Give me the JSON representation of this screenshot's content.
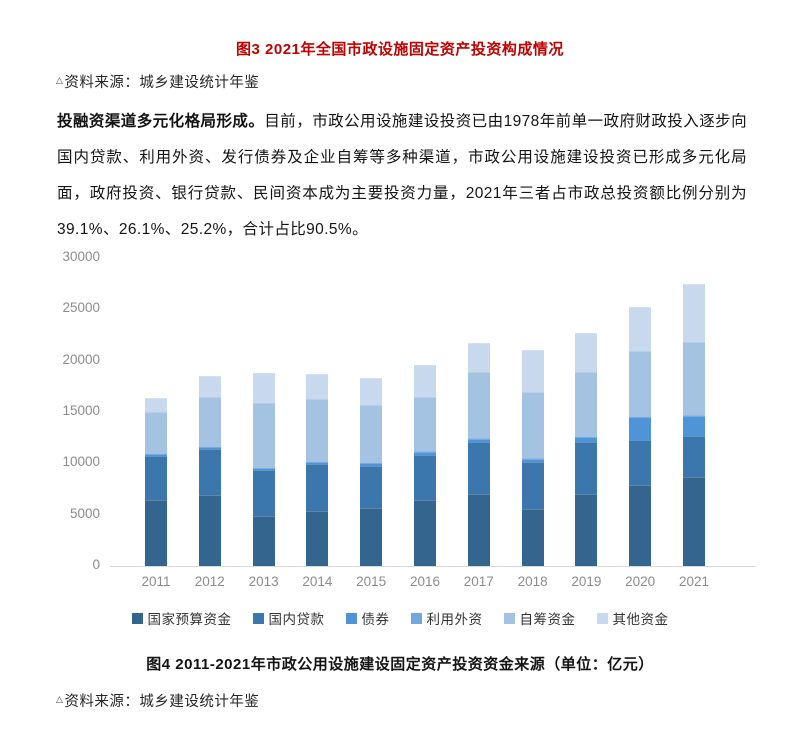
{
  "page": {
    "fig3_title": "图3 2021年全国市政设施固定资产投资构成情况",
    "source_marker": "△",
    "source_note_top": "资料来源：城乡建设统计年鉴",
    "paragraph": {
      "lead_bold": "投融资渠道多元化格局形成。",
      "body": "目前，市政公用设施建设投资已由1978年前单一政府财政投入逐步向国内贷款、利用外资、发行债券及企业自筹等多种渠道，市政公用设施建设投资已形成多元化局面，政府投资、银行贷款、民间资本成为主要投资力量，2021年三者占市政总投资额比例分别为39.1%、26.1%、25.2%，合计占比90.5%。"
    },
    "fig4_caption": "图4 2011-2021年市政公用设施建设固定资产投资资金来源（单位：亿元）",
    "source_note_bottom": "资料来源：城乡建设统计年鉴"
  },
  "chart_data": {
    "type": "bar",
    "stacked": true,
    "title": "图4 2011-2021年市政公用设施建设固定资产投资资金来源（单位：亿元）",
    "xlabel": "",
    "ylabel": "",
    "unit": "亿元",
    "categories": [
      "2011",
      "2012",
      "2013",
      "2014",
      "2015",
      "2016",
      "2017",
      "2018",
      "2019",
      "2020",
      "2021"
    ],
    "series": [
      {
        "name": "国家预算资金",
        "color": "#33658f",
        "values": [
          6400,
          6900,
          4900,
          5400,
          5600,
          6450,
          7050,
          5580,
          7040,
          7850,
          8650
        ]
      },
      {
        "name": "国内贷款",
        "color": "#3b77ad",
        "values": [
          4350,
          4500,
          4400,
          4500,
          4150,
          4400,
          5000,
          4500,
          5030,
          4400,
          4000
        ]
      },
      {
        "name": "债券",
        "color": "#4f94d6",
        "values": [
          150,
          180,
          200,
          220,
          250,
          300,
          350,
          380,
          500,
          2270,
          2000
        ]
      },
      {
        "name": "利用外资",
        "color": "#74a7dc",
        "values": [
          20,
          20,
          20,
          20,
          20,
          20,
          20,
          20,
          20,
          20,
          20
        ]
      },
      {
        "name": "自筹资金",
        "color": "#a4c2e2",
        "values": [
          4100,
          4850,
          6350,
          6080,
          5650,
          5300,
          6440,
          6500,
          6330,
          6400,
          7150
        ]
      },
      {
        "name": "其他资金",
        "color": "#c9d9ed",
        "values": [
          1300,
          2040,
          2900,
          2450,
          2600,
          3080,
          2900,
          4050,
          3800,
          4300,
          5600
        ]
      }
    ],
    "totals": [
      16320,
      18490,
      18770,
      18670,
      18270,
      19550,
      21760,
      21030,
      22720,
      25240,
      27420
    ],
    "ylim": [
      0,
      30000
    ],
    "yticks": [
      0,
      5000,
      10000,
      15000,
      20000,
      25000,
      30000
    ],
    "grid": false,
    "legend_position": "bottom"
  }
}
